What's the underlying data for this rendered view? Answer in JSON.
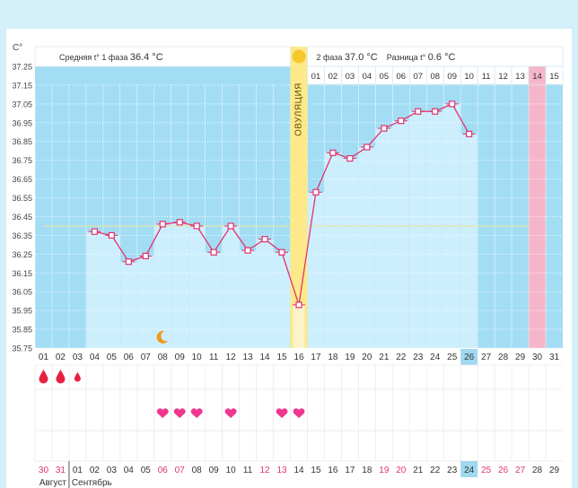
{
  "chart_data": {
    "type": "line",
    "unit_label": "C°",
    "ylim": [
      35.75,
      37.25
    ],
    "y_ticks": [
      "37.25",
      "37.15",
      "37.05",
      "36.95",
      "36.85",
      "36.75",
      "36.65",
      "36.55",
      "36.45",
      "36.35",
      "36.25",
      "36.15",
      "36.05",
      "35.95",
      "35.85",
      "35.75"
    ],
    "day_labels": [
      "01",
      "02",
      "03",
      "04",
      "05",
      "06",
      "07",
      "08",
      "09",
      "10",
      "11",
      "12",
      "13",
      "14",
      "15",
      "16",
      "17",
      "18",
      "19",
      "20",
      "21",
      "22",
      "23",
      "24",
      "25",
      "26",
      "27",
      "28",
      "29",
      "30",
      "31"
    ],
    "highlighted_day": "26",
    "series": [
      {
        "name": "temperature",
        "color": "#e0336e",
        "days": [
          4,
          5,
          6,
          7,
          8,
          9,
          10,
          11,
          12,
          13,
          14,
          15,
          16,
          17,
          18,
          19,
          20,
          21,
          22,
          23,
          24,
          25,
          26
        ],
        "values": [
          36.37,
          36.35,
          36.21,
          36.24,
          36.41,
          36.42,
          36.4,
          36.26,
          36.4,
          36.27,
          36.33,
          36.26,
          35.98,
          36.58,
          36.79,
          36.76,
          36.82,
          36.92,
          36.96,
          37.01,
          37.01,
          37.05,
          36.89
        ]
      }
    ],
    "coverline": 36.4,
    "ovulation_day": 16,
    "ovulation_label": "ОВУЛЯЦИЯ",
    "phase1_text": "Средняя t° 1 фаза",
    "phase1_value": "36.4 °C",
    "phase2_text": "2 фаза",
    "phase2_value": "37.0 °C",
    "diff_text": "Разница t°",
    "diff_value": "0.6 °C",
    "phase2_days": [
      "01",
      "02",
      "03",
      "04",
      "05",
      "06",
      "07",
      "08",
      "09",
      "10",
      "11",
      "12",
      "13",
      "14",
      "15"
    ],
    "phase2_highlight": "14",
    "moon_day": 8,
    "drop_days": [
      1,
      2,
      3
    ],
    "heart_days": [
      8,
      9,
      10,
      12,
      15,
      16
    ],
    "calendar_dates": [
      "30",
      "31",
      "01",
      "02",
      "03",
      "04",
      "05",
      "06",
      "07",
      "08",
      "09",
      "10",
      "11",
      "12",
      "13",
      "14",
      "15",
      "16",
      "17",
      "18",
      "19",
      "20",
      "21",
      "22",
      "23",
      "24",
      "25",
      "26",
      "27",
      "28",
      "29"
    ],
    "weekend_indices": [
      0,
      1,
      7,
      8,
      13,
      14,
      20,
      21,
      26,
      27,
      28
    ],
    "calendar_highlight_index": 25,
    "month_labels": [
      "Август",
      "Сентябрь"
    ],
    "colors": {
      "page_bg": "#d3eff9",
      "plot_bg": "#a3ddf4",
      "bar_fill": "#cdeefd",
      "line": "#e0336e",
      "ovulation": "#fde98a",
      "pink_day": "#f6b6c9",
      "coverline": "#e8e6a0",
      "heart": "#f0368f",
      "drop": "#e8203f",
      "moon": "#f29a1f"
    }
  }
}
